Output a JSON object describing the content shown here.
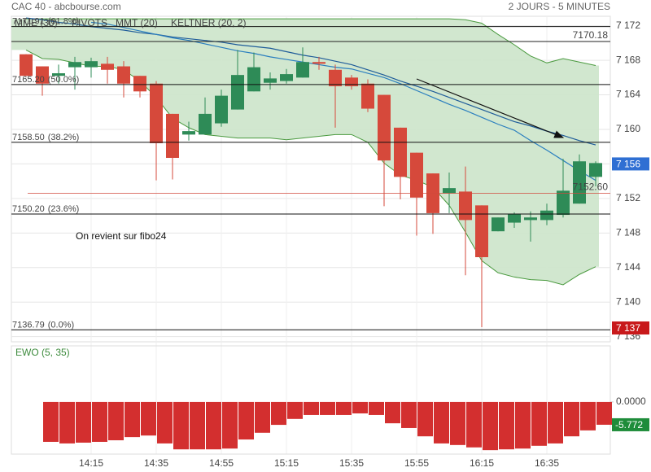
{
  "chart_data": [
    {
      "type": "candlestick",
      "title": "CAC 40 - abcbourse.com",
      "subtitle": "2 JOURS - 5 MINUTES",
      "annotation": "On revient sur fibo24",
      "categories": [
        null,
        null,
        null,
        null,
        "14:15",
        null,
        null,
        null,
        "14:35",
        null,
        null,
        null,
        "14:55",
        null,
        null,
        null,
        "15:15",
        null,
        null,
        null,
        "15:35",
        null,
        null,
        null,
        "15:55",
        null,
        null,
        null,
        "16:15",
        null,
        null,
        null,
        "16:35",
        null,
        null,
        null
      ],
      "open": [
        7168.7,
        7167.3,
        7166.2,
        7167.2,
        7167.2,
        7167.6,
        7167.3,
        7166.2,
        7165.3,
        7161.8,
        7159.4,
        7159.4,
        7160.7,
        7162.3,
        7164.4,
        7165.4,
        7165.6,
        7166.0,
        7167.8,
        7166.9,
        7166.0,
        7165.3,
        7164.0,
        7160.2,
        7157.3,
        7154.9,
        7152.6,
        7152.8,
        7151.2,
        7148.2,
        7149.2,
        7149.5,
        7149.5,
        7150.1,
        7151.4,
        7154.5
      ],
      "high": [
        7168.7,
        7167.3,
        7167.5,
        7168.4,
        7168.3,
        7168.4,
        7167.9,
        7166.2,
        7165.6,
        7161.8,
        7160.9,
        7163.7,
        7164.6,
        7169.2,
        7168.9,
        7166.6,
        7167.0,
        7169.5,
        7168.4,
        7167.5,
        7166.3,
        7165.8,
        7164.0,
        7160.2,
        7157.3,
        7154.9,
        7155.0,
        7155.7,
        7151.2,
        7149.8,
        7150.4,
        7150.5,
        7151.4,
        7156.6,
        7157.1,
        7156.3
      ],
      "low": [
        7166.2,
        7163.9,
        7165.3,
        7164.6,
        7166.0,
        7165.3,
        7163.7,
        7163.7,
        7154.1,
        7154.2,
        7158.7,
        7159.4,
        7160.3,
        7162.3,
        7164.4,
        7164.6,
        7165.3,
        7166.0,
        7166.9,
        7160.2,
        7164.6,
        7162.0,
        7151.1,
        7151.9,
        7147.7,
        7147.9,
        7150.3,
        7143.1,
        7137.1,
        7148.2,
        7148.6,
        7147.0,
        7148.9,
        7149.8,
        7151.4,
        7153.4
      ],
      "close": [
        7166.2,
        7165.3,
        7166.5,
        7167.8,
        7167.9,
        7166.9,
        7165.3,
        7164.4,
        7158.4,
        7156.7,
        7159.8,
        7161.8,
        7163.9,
        7166.3,
        7167.2,
        7165.9,
        7166.4,
        7167.8,
        7167.6,
        7165.0,
        7165.0,
        7162.4,
        7156.4,
        7154.5,
        7152.1,
        7150.3,
        7153.2,
        7149.5,
        7145.2,
        7149.8,
        7150.2,
        7149.8,
        7150.6,
        7152.9,
        7156.3,
        7156.1
      ],
      "up_color": "#2e8b57",
      "down_color": "#d6493b",
      "series": [
        {
          "name": "MME (30)",
          "color": "#1f5c99",
          "values": [
            7172.9,
            7172.7,
            7172.4,
            7172.2,
            7171.9,
            7171.7,
            7171.5,
            7171.2,
            7171.0,
            7170.7,
            7170.5,
            7170.3,
            7170.1,
            7169.8,
            7169.6,
            7169.4,
            7169.0,
            7168.6,
            7168.3,
            7167.9,
            7167.5,
            7166.9,
            7166.3,
            7165.6,
            7165.0,
            7164.4,
            7163.7,
            7163.0,
            7162.3,
            7161.6,
            7160.9,
            7160.4,
            7159.8,
            7159.3,
            7158.7,
            7158.2
          ]
        },
        {
          "name": "MMT (20)",
          "color": "#2b7fbf",
          "values": [
            null,
            null,
            null,
            null,
            7172.4,
            7172.2,
            7171.8,
            7171.4,
            7171.0,
            7170.6,
            7170.3,
            7169.9,
            7169.5,
            7169.1,
            7168.8,
            7168.4,
            7168.1,
            7167.8,
            7167.5,
            7167.2,
            7167.0,
            7166.5,
            7166.0,
            7165.3,
            7164.5,
            7163.7,
            7162.9,
            7162.2,
            7161.4,
            7160.6,
            7159.9,
            7158.7,
            7157.6,
            7156.4,
            7155.2,
            7154.1
          ]
        }
      ],
      "keltner": {
        "name": "KELTNER (20, 2)",
        "color": "#4a9a3f",
        "fill": "#cfe6cc",
        "upper": [
          7172.8,
          7172.8,
          7172.8,
          7172.8,
          7172.8,
          7172.8,
          7172.8,
          7172.8,
          7172.8,
          7172.8,
          7172.8,
          7172.8,
          7172.8,
          7172.8,
          7172.8,
          7172.8,
          7172.8,
          7172.8,
          7172.8,
          7172.8,
          7172.8,
          7172.8,
          7172.8,
          7172.8,
          7172.8,
          7172.8,
          7172.8,
          7172.7,
          7172.3,
          7171.0,
          7169.8,
          7168.5,
          7167.7,
          7168.2,
          7167.8,
          7167.4
        ],
        "lower": [
          7169.2,
          7168.2,
          7168.1,
          7167.7,
          7167.3,
          7167.3,
          7166.9,
          7165.6,
          7163.7,
          7161.3,
          7160.2,
          7159.4,
          7159.2,
          7159.0,
          7159.0,
          7159.0,
          7158.8,
          7159.0,
          7159.2,
          7159.4,
          7159.4,
          7158.5,
          7156.1,
          7154.7,
          7154.1,
          7153.3,
          7151.2,
          7148.1,
          7144.8,
          7143.4,
          7142.9,
          7142.6,
          7142.5,
          7142.0,
          7143.2,
          7144.1
        ]
      },
      "pivots": {
        "name": "PIVOTS",
        "color": "#555555",
        "levels": [
          {
            "value": 7171.91,
            "label": "7171.91",
            "ratio": "(61.8%)"
          },
          {
            "value": 7165.2,
            "label": "7165.20",
            "ratio": "(50.0%)"
          },
          {
            "value": 7158.5,
            "label": "7158.50",
            "ratio": "(38.2%)"
          },
          {
            "value": 7150.2,
            "label": "7150.20",
            "ratio": "(23.6%)"
          },
          {
            "value": 7136.79,
            "label": "7136.79",
            "ratio": "(0.0%)"
          }
        ]
      },
      "lines": [
        {
          "value": 7170.18,
          "label": "7170.18",
          "color": "#222222"
        },
        {
          "value": 7152.6,
          "label": "7152.60",
          "color": "#d04a3c"
        }
      ],
      "price_tags": [
        {
          "value": 7156,
          "label": "7 156",
          "color": "#2f6fd3"
        },
        {
          "value": 7137,
          "label": "7 137",
          "color": "#c8191b"
        }
      ],
      "ylim": [
        7135.4,
        7173.1
      ],
      "yticks": [
        {
          "value": 7172,
          "label": "7 172"
        },
        {
          "value": 7168,
          "label": "7 168"
        },
        {
          "value": 7164,
          "label": "7 164"
        },
        {
          "value": 7160,
          "label": "7 160"
        },
        {
          "value": 7156,
          "label": "7 156"
        },
        {
          "value": 7152,
          "label": "7 152"
        },
        {
          "value": 7148,
          "label": "7 148"
        },
        {
          "value": 7144,
          "label": "7 144"
        },
        {
          "value": 7140,
          "label": "7 140"
        },
        {
          "value": 7136,
          "label": "7 136"
        }
      ],
      "grid": true
    },
    {
      "type": "bar",
      "title": "EWO (5, 35)",
      "title_color": "#3d8b3d",
      "color": "#d32f2f",
      "values": [
        null,
        -10.1,
        -10.5,
        -10.3,
        -10.1,
        -9.7,
        -8.9,
        -8.5,
        -10.5,
        -12.0,
        -12.0,
        -12.0,
        -11.8,
        -9.5,
        -7.8,
        -5.8,
        -4.3,
        -3.3,
        -3.3,
        -3.3,
        -2.9,
        -3.3,
        -5.4,
        -6.6,
        -8.7,
        -10.5,
        -10.9,
        -11.5,
        -12.2,
        -12.0,
        -11.8,
        -11.1,
        -10.5,
        -8.7,
        -7.2,
        -5.772
      ],
      "last_value": -5.772,
      "last_color": "#1e8c3a",
      "ylim": [
        -13.2,
        14.2
      ],
      "yticks": [
        {
          "value": 0,
          "label": "0.0000"
        }
      ]
    }
  ]
}
